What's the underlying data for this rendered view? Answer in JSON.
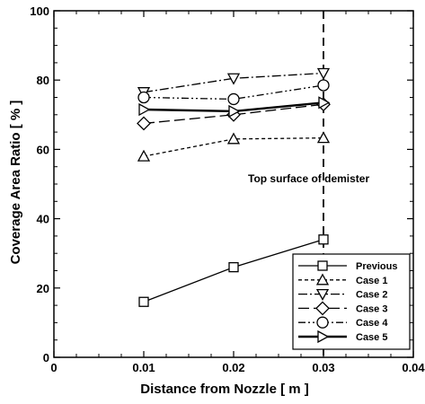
{
  "chart_data": {
    "type": "line",
    "xlabel": "Distance from Nozzle [ m ]",
    "ylabel": "Coverage Area Ratio [ % ]",
    "xlim": [
      0,
      0.04
    ],
    "ylim": [
      0,
      100
    ],
    "x_ticks": [
      "0",
      "0.01",
      "0.02",
      "0.03",
      "0.04"
    ],
    "y_ticks": [
      "0",
      "20",
      "40",
      "60",
      "80",
      "100"
    ],
    "x": [
      0.01,
      0.02,
      0.03
    ],
    "grid": false,
    "legend_position": "bottom-right",
    "series": [
      {
        "name": "Previous",
        "marker": "square",
        "dash": "solid",
        "values": [
          16,
          26,
          34
        ]
      },
      {
        "name": "Case 1",
        "marker": "triangle-up",
        "dash": "dashed",
        "values": [
          58,
          63,
          63.3
        ]
      },
      {
        "name": "Case 2",
        "marker": "triangle-down",
        "dash": "dashdot",
        "values": [
          76.5,
          80.5,
          82
        ]
      },
      {
        "name": "Case 3",
        "marker": "diamond",
        "dash": "longdash",
        "values": [
          67.5,
          70,
          73
        ]
      },
      {
        "name": "Case 4",
        "marker": "circle",
        "dash": "dashdotdot",
        "values": [
          75,
          74.5,
          78.5
        ]
      },
      {
        "name": "Case 5",
        "marker": "triangle-right",
        "dash": "solid-thick",
        "values": [
          71.5,
          71,
          73.5
        ]
      }
    ],
    "reference_line": {
      "x": 0.03,
      "style": "dashed",
      "label": "Top surface of demister"
    }
  }
}
